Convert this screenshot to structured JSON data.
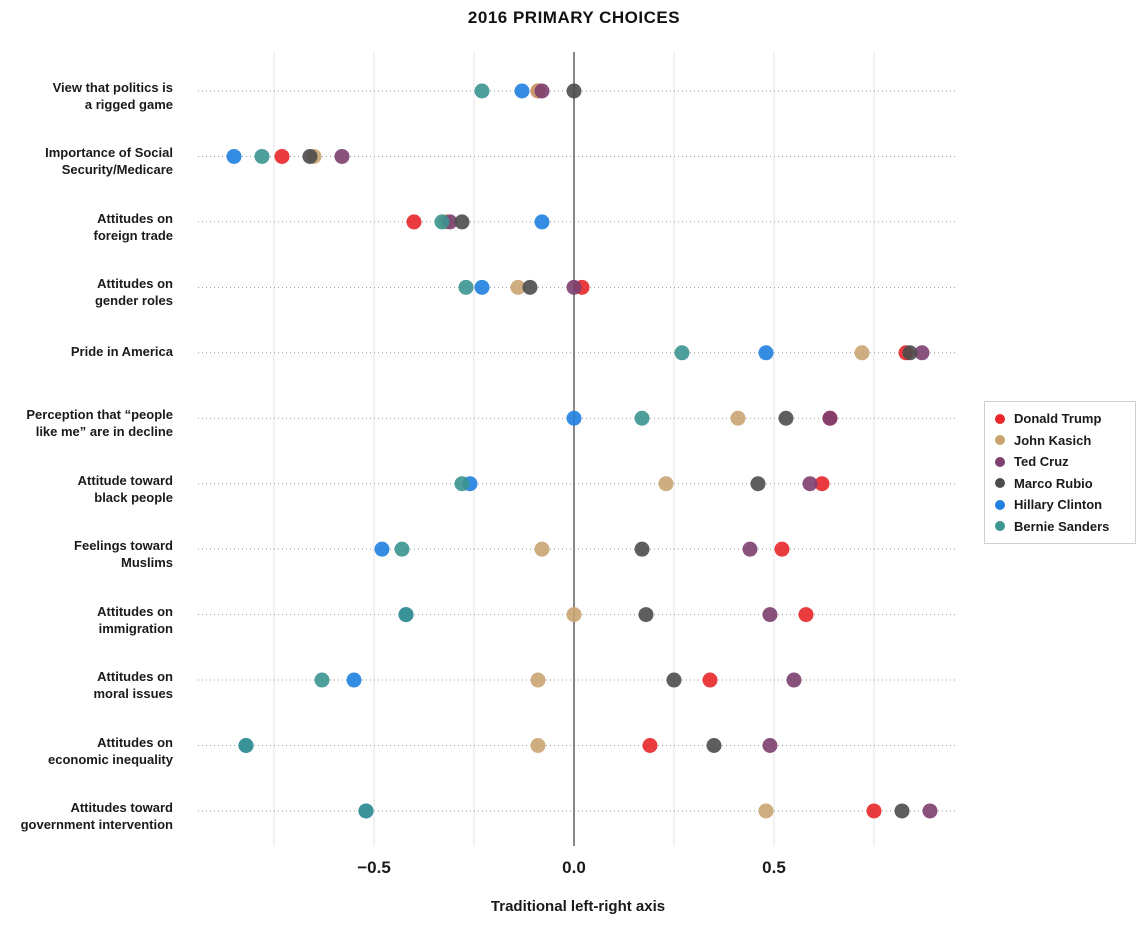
{
  "chart_data": {
    "type": "scatter",
    "title": "2016 PRIMARY CHOICES",
    "xlabel": "Traditional left-right axis",
    "xlim": [
      -0.94,
      0.96
    ],
    "xticks": [
      {
        "value": -0.5,
        "label": "−0.5"
      },
      {
        "value": 0.0,
        "label": "0.0"
      },
      {
        "value": 0.5,
        "label": "0.5"
      }
    ],
    "grid": true,
    "legend_position": "right",
    "categories": [
      "View that politics is\na rigged game",
      "Importance of Social\nSecurity/Medicare",
      "Attitudes on\nforeign trade",
      "Attitudes on\ngender roles",
      "Pride in America",
      "Perception that “people\nlike me” are in decline",
      "Attitude toward\nblack people",
      "Feelings toward\nMuslims",
      "Attitudes on\nimmigration",
      "Attitudes on\nmoral issues",
      "Attitudes on\neconomic inequality",
      "Attitudes toward\ngovernment intervention"
    ],
    "series": [
      {
        "name": "Donald Trump",
        "color": "#e8262a",
        "values": [
          -0.09,
          -0.73,
          -0.4,
          0.02,
          0.83,
          0.64,
          0.62,
          0.52,
          0.58,
          0.34,
          0.19,
          0.75
        ]
      },
      {
        "name": "John Kasich",
        "color": "#c9a472",
        "values": [
          -0.09,
          -0.65,
          -0.32,
          -0.14,
          0.72,
          0.41,
          0.23,
          -0.08,
          0.0,
          -0.09,
          -0.09,
          0.48
        ]
      },
      {
        "name": "Ted Cruz",
        "color": "#7c3f6f",
        "values": [
          -0.08,
          -0.58,
          -0.31,
          0.0,
          0.87,
          0.64,
          0.59,
          0.44,
          0.49,
          0.55,
          0.49,
          0.89
        ]
      },
      {
        "name": "Marco Rubio",
        "color": "#4d4d4d",
        "values": [
          0.0,
          -0.66,
          -0.28,
          -0.11,
          0.84,
          0.53,
          0.46,
          0.17,
          0.18,
          0.25,
          0.35,
          0.82
        ]
      },
      {
        "name": "Hillary Clinton",
        "color": "#1f7fe0",
        "values": [
          -0.13,
          -0.85,
          -0.08,
          -0.23,
          0.48,
          0.0,
          -0.26,
          -0.48,
          -0.42,
          -0.55,
          -0.82,
          -0.52
        ]
      },
      {
        "name": "Bernie Sanders",
        "color": "#3b9490",
        "values": [
          -0.23,
          -0.78,
          -0.33,
          -0.27,
          0.27,
          0.17,
          -0.28,
          -0.43,
          -0.42,
          -0.63,
          -0.82,
          -0.52
        ]
      }
    ]
  }
}
